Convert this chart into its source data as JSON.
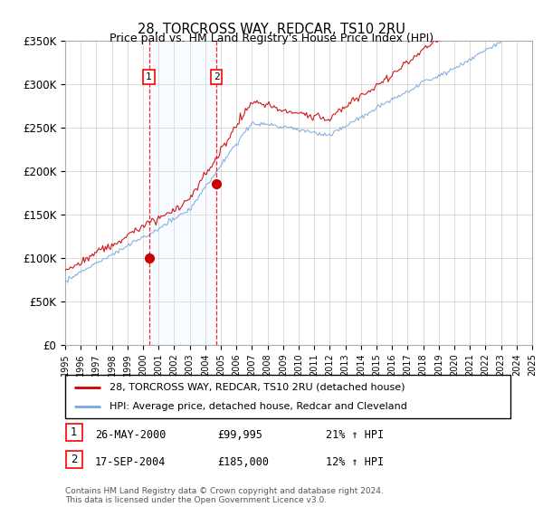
{
  "title": "28, TORCROSS WAY, REDCAR, TS10 2RU",
  "subtitle": "Price paid vs. HM Land Registry's House Price Index (HPI)",
  "ylim": [
    0,
    350000
  ],
  "yticks": [
    0,
    50000,
    100000,
    150000,
    200000,
    250000,
    300000,
    350000
  ],
  "ytick_labels": [
    "£0",
    "£50K",
    "£100K",
    "£150K",
    "£200K",
    "£250K",
    "£300K",
    "£350K"
  ],
  "x_start_year": 1995,
  "x_end_year": 2025,
  "sale1_year": 2000.38,
  "sale1_price": 99995,
  "sale1_label": "26-MAY-2000",
  "sale1_price_str": "£99,995",
  "sale1_hpi_str": "21% ↑ HPI",
  "sale2_year": 2004.72,
  "sale2_price": 185000,
  "sale2_label": "17-SEP-2004",
  "sale2_price_str": "£185,000",
  "sale2_hpi_str": "12% ↑ HPI",
  "line1_color": "#cc0000",
  "line2_color": "#7aaadd",
  "shade_color": "#ddeeff",
  "legend1": "28, TORCROSS WAY, REDCAR, TS10 2RU (detached house)",
  "legend2": "HPI: Average price, detached house, Redcar and Cleveland",
  "footer": "Contains HM Land Registry data © Crown copyright and database right 2024.\nThis data is licensed under the Open Government Licence v3.0.",
  "background_color": "#ffffff",
  "grid_color": "#cccccc"
}
